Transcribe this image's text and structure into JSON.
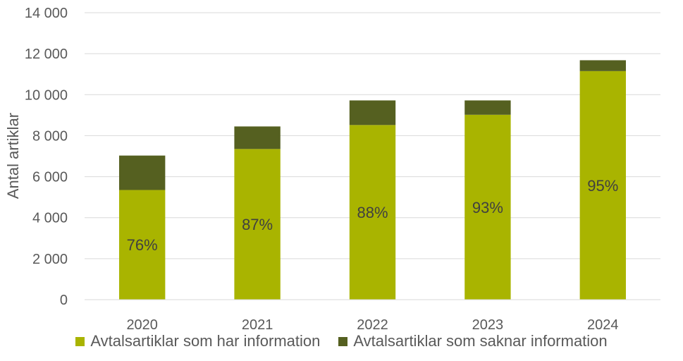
{
  "chart_data": {
    "type": "bar",
    "stacked": true,
    "categories": [
      "2020",
      "2021",
      "2022",
      "2023",
      "2024"
    ],
    "series": [
      {
        "name": "Avtalsartiklar som har information",
        "color": "#a9b400",
        "values": [
          5350,
          7350,
          8520,
          9020,
          11150
        ],
        "labels": [
          "76%",
          "87%",
          "88%",
          "93%",
          "95%"
        ]
      },
      {
        "name": "Avtalsartiklar som saknar information",
        "color": "#556020",
        "values": [
          1680,
          1100,
          1200,
          700,
          530
        ]
      }
    ],
    "ylabel": "Antal artiklar",
    "ylim": [
      0,
      14000
    ],
    "yticks": [
      0,
      2000,
      4000,
      6000,
      8000,
      10000,
      12000,
      14000
    ],
    "ytick_labels": [
      "0",
      "2 000",
      "4 000",
      "6 000",
      "8 000",
      "10 000",
      "12 000",
      "14 000"
    ],
    "grid": true,
    "legend_position": "bottom"
  }
}
